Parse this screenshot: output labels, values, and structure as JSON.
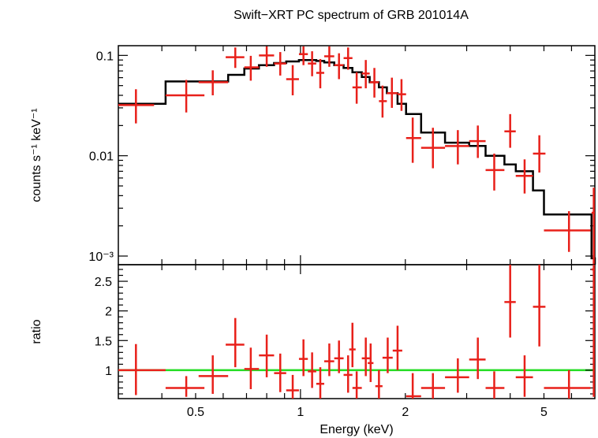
{
  "chart_data": [
    {
      "type": "step+errorbar",
      "panel": "spectrum",
      "title": "Swift−XRT PC spectrum of GRB 201014A",
      "xlabel": "",
      "ylabel": "counts s⁻¹ keV⁻¹",
      "xscale": "log",
      "yscale": "log",
      "xlim": [
        0.3,
        7.0
      ],
      "ylim": [
        0.00082,
        0.125
      ],
      "y_ticks": [
        {
          "value": 0.1,
          "label": "0.1"
        },
        {
          "value": 0.01,
          "label": "0.01"
        },
        {
          "value": 0.001,
          "label": "10⁻³"
        }
      ],
      "series": [
        {
          "kind": "data",
          "color": "#e8201a",
          "points": [
            {
              "x": 0.337,
              "xlo": 0.3,
              "xhi": 0.38,
              "y": 0.032,
              "ylo": 0.021,
              "yhi": 0.046
            },
            {
              "x": 0.47,
              "xlo": 0.41,
              "xhi": 0.53,
              "y": 0.04,
              "ylo": 0.027,
              "yhi": 0.057
            },
            {
              "x": 0.56,
              "xlo": 0.51,
              "xhi": 0.62,
              "y": 0.054,
              "ylo": 0.04,
              "yhi": 0.071
            },
            {
              "x": 0.65,
              "xlo": 0.61,
              "xhi": 0.69,
              "y": 0.096,
              "ylo": 0.075,
              "yhi": 0.12
            },
            {
              "x": 0.72,
              "xlo": 0.69,
              "xhi": 0.76,
              "y": 0.076,
              "ylo": 0.056,
              "yhi": 0.099
            },
            {
              "x": 0.8,
              "xlo": 0.76,
              "xhi": 0.84,
              "y": 0.1,
              "ylo": 0.077,
              "yhi": 0.123
            },
            {
              "x": 0.875,
              "xlo": 0.84,
              "xhi": 0.91,
              "y": 0.083,
              "ylo": 0.063,
              "yhi": 0.108
            },
            {
              "x": 0.95,
              "xlo": 0.91,
              "xhi": 0.99,
              "y": 0.058,
              "ylo": 0.04,
              "yhi": 0.08
            },
            {
              "x": 1.02,
              "xlo": 0.99,
              "xhi": 1.05,
              "y": 0.103,
              "ylo": 0.08,
              "yhi": 0.123
            },
            {
              "x": 1.08,
              "xlo": 1.05,
              "xhi": 1.11,
              "y": 0.083,
              "ylo": 0.062,
              "yhi": 0.11
            },
            {
              "x": 1.14,
              "xlo": 1.11,
              "xhi": 1.17,
              "y": 0.067,
              "ylo": 0.047,
              "yhi": 0.092
            },
            {
              "x": 1.21,
              "xlo": 1.17,
              "xhi": 1.25,
              "y": 0.098,
              "ylo": 0.077,
              "yhi": 0.123
            },
            {
              "x": 1.29,
              "xlo": 1.25,
              "xhi": 1.33,
              "y": 0.08,
              "ylo": 0.058,
              "yhi": 0.105
            },
            {
              "x": 1.37,
              "xlo": 1.33,
              "xhi": 1.41,
              "y": 0.094,
              "ylo": 0.072,
              "yhi": 0.12
            },
            {
              "x": 1.45,
              "xlo": 1.41,
              "xhi": 1.5,
              "y": 0.048,
              "ylo": 0.033,
              "yhi": 0.068
            },
            {
              "x": 1.54,
              "xlo": 1.5,
              "xhi": 1.58,
              "y": 0.066,
              "ylo": 0.047,
              "yhi": 0.09
            },
            {
              "x": 1.63,
              "xlo": 1.58,
              "xhi": 1.68,
              "y": 0.054,
              "ylo": 0.038,
              "yhi": 0.075
            },
            {
              "x": 1.72,
              "xlo": 1.68,
              "xhi": 1.77,
              "y": 0.035,
              "ylo": 0.024,
              "yhi": 0.05
            },
            {
              "x": 1.83,
              "xlo": 1.77,
              "xhi": 1.9,
              "y": 0.042,
              "ylo": 0.03,
              "yhi": 0.06
            },
            {
              "x": 1.95,
              "xlo": 1.9,
              "xhi": 2.01,
              "y": 0.041,
              "ylo": 0.028,
              "yhi": 0.058
            },
            {
              "x": 2.1,
              "xlo": 2.01,
              "xhi": 2.22,
              "y": 0.015,
              "ylo": 0.0085,
              "yhi": 0.024
            },
            {
              "x": 2.4,
              "xlo": 2.22,
              "xhi": 2.6,
              "y": 0.012,
              "ylo": 0.0075,
              "yhi": 0.019
            },
            {
              "x": 2.83,
              "xlo": 2.6,
              "xhi": 3.05,
              "y": 0.0125,
              "ylo": 0.0082,
              "yhi": 0.018
            },
            {
              "x": 3.23,
              "xlo": 3.05,
              "xhi": 3.4,
              "y": 0.014,
              "ylo": 0.0095,
              "yhi": 0.02
            },
            {
              "x": 3.6,
              "xlo": 3.4,
              "xhi": 3.85,
              "y": 0.0072,
              "ylo": 0.0045,
              "yhi": 0.0105
            },
            {
              "x": 4.0,
              "xlo": 3.85,
              "xhi": 4.15,
              "y": 0.0175,
              "ylo": 0.012,
              "yhi": 0.026
            },
            {
              "x": 4.4,
              "xlo": 4.15,
              "xhi": 4.65,
              "y": 0.0063,
              "ylo": 0.0042,
              "yhi": 0.0092
            },
            {
              "x": 4.85,
              "xlo": 4.65,
              "xhi": 5.05,
              "y": 0.0105,
              "ylo": 0.0068,
              "yhi": 0.016
            },
            {
              "x": 5.9,
              "xlo": 5.0,
              "xhi": 6.8,
              "y": 0.0018,
              "ylo": 0.0011,
              "yhi": 0.0028
            },
            {
              "x": 6.95,
              "xlo": 6.85,
              "xhi": 7.0,
              "y": 0.0027,
              "ylo": 0.0008,
              "yhi": 0.0048
            }
          ]
        },
        {
          "kind": "model",
          "color": "#000000",
          "steps": [
            {
              "x0": 0.3,
              "x1": 0.41,
              "y": 0.033
            },
            {
              "x0": 0.41,
              "x1": 0.62,
              "y": 0.055
            },
            {
              "x0": 0.62,
              "x1": 0.69,
              "y": 0.064
            },
            {
              "x0": 0.69,
              "x1": 0.76,
              "y": 0.074
            },
            {
              "x0": 0.76,
              "x1": 0.84,
              "y": 0.08
            },
            {
              "x0": 0.84,
              "x1": 0.91,
              "y": 0.084
            },
            {
              "x0": 0.91,
              "x1": 0.99,
              "y": 0.087
            },
            {
              "x0": 0.99,
              "x1": 1.11,
              "y": 0.09
            },
            {
              "x0": 1.11,
              "x1": 1.17,
              "y": 0.088
            },
            {
              "x0": 1.17,
              "x1": 1.25,
              "y": 0.085
            },
            {
              "x0": 1.25,
              "x1": 1.33,
              "y": 0.08
            },
            {
              "x0": 1.33,
              "x1": 1.41,
              "y": 0.075
            },
            {
              "x0": 1.41,
              "x1": 1.5,
              "y": 0.068
            },
            {
              "x0": 1.5,
              "x1": 1.58,
              "y": 0.061
            },
            {
              "x0": 1.58,
              "x1": 1.68,
              "y": 0.054
            },
            {
              "x0": 1.68,
              "x1": 1.77,
              "y": 0.048
            },
            {
              "x0": 1.77,
              "x1": 1.9,
              "y": 0.042
            },
            {
              "x0": 1.9,
              "x1": 2.01,
              "y": 0.033
            },
            {
              "x0": 2.01,
              "x1": 2.22,
              "y": 0.026
            },
            {
              "x0": 2.22,
              "x1": 2.6,
              "y": 0.017
            },
            {
              "x0": 2.6,
              "x1": 3.05,
              "y": 0.0135
            },
            {
              "x0": 3.05,
              "x1": 3.4,
              "y": 0.0125
            },
            {
              "x0": 3.4,
              "x1": 3.85,
              "y": 0.01
            },
            {
              "x0": 3.85,
              "x1": 4.15,
              "y": 0.0082
            },
            {
              "x0": 4.15,
              "x1": 4.65,
              "y": 0.007
            },
            {
              "x0": 4.65,
              "x1": 5.0,
              "y": 0.0045
            },
            {
              "x0": 5.0,
              "x1": 6.85,
              "y": 0.0026
            },
            {
              "x0": 6.85,
              "x1": 7.0,
              "y": 0.00095
            }
          ]
        }
      ]
    },
    {
      "type": "errorbar",
      "panel": "ratio",
      "xlabel": "Energy (keV)",
      "ylabel": "ratio",
      "xscale": "log",
      "yscale": "linear",
      "xlim": [
        0.3,
        7.0
      ],
      "ylim": [
        0.52,
        2.78
      ],
      "x_ticks": [
        {
          "value": 0.5,
          "label": "0.5"
        },
        {
          "value": 1,
          "label": "1"
        },
        {
          "value": 2,
          "label": "2"
        },
        {
          "value": 5,
          "label": "5"
        }
      ],
      "y_ticks": [
        {
          "value": 1,
          "label": "1"
        },
        {
          "value": 1.5,
          "label": "1.5"
        },
        {
          "value": 2,
          "label": "2"
        },
        {
          "value": 2.5,
          "label": "2.5"
        }
      ],
      "reference_line": {
        "y": 1,
        "color": "#22dd22"
      },
      "series": [
        {
          "kind": "data",
          "color": "#e8201a",
          "points": [
            {
              "x": 0.337,
              "xlo": 0.3,
              "xhi": 0.41,
              "y": 1.0,
              "ylo": 0.58,
              "yhi": 1.44
            },
            {
              "x": 0.47,
              "xlo": 0.41,
              "xhi": 0.53,
              "y": 0.7,
              "ylo": 0.55,
              "yhi": 0.9
            },
            {
              "x": 0.56,
              "xlo": 0.51,
              "xhi": 0.62,
              "y": 0.9,
              "ylo": 0.6,
              "yhi": 1.25
            },
            {
              "x": 0.65,
              "xlo": 0.61,
              "xhi": 0.69,
              "y": 1.43,
              "ylo": 1.05,
              "yhi": 1.88
            },
            {
              "x": 0.72,
              "xlo": 0.69,
              "xhi": 0.76,
              "y": 1.02,
              "ylo": 0.68,
              "yhi": 1.38
            },
            {
              "x": 0.8,
              "xlo": 0.76,
              "xhi": 0.84,
              "y": 1.25,
              "ylo": 0.88,
              "yhi": 1.6
            },
            {
              "x": 0.875,
              "xlo": 0.84,
              "xhi": 0.91,
              "y": 0.95,
              "ylo": 0.63,
              "yhi": 1.28
            },
            {
              "x": 0.95,
              "xlo": 0.91,
              "xhi": 0.99,
              "y": 0.66,
              "ylo": 0.52,
              "yhi": 0.92
            },
            {
              "x": 1.02,
              "xlo": 0.99,
              "xhi": 1.05,
              "y": 1.19,
              "ylo": 0.9,
              "yhi": 1.52
            },
            {
              "x": 1.08,
              "xlo": 1.05,
              "xhi": 1.11,
              "y": 0.98,
              "ylo": 0.7,
              "yhi": 1.3
            },
            {
              "x": 1.14,
              "xlo": 1.11,
              "xhi": 1.17,
              "y": 0.77,
              "ylo": 0.52,
              "yhi": 1.05
            },
            {
              "x": 1.21,
              "xlo": 1.17,
              "xhi": 1.25,
              "y": 1.15,
              "ylo": 0.9,
              "yhi": 1.45
            },
            {
              "x": 1.29,
              "xlo": 1.25,
              "xhi": 1.33,
              "y": 1.2,
              "ylo": 0.95,
              "yhi": 1.5
            },
            {
              "x": 1.37,
              "xlo": 1.33,
              "xhi": 1.41,
              "y": 0.92,
              "ylo": 0.62,
              "yhi": 1.25
            },
            {
              "x": 1.41,
              "xlo": 1.38,
              "xhi": 1.44,
              "y": 1.35,
              "ylo": 1.05,
              "yhi": 1.8
            },
            {
              "x": 1.45,
              "xlo": 1.41,
              "xhi": 1.5,
              "y": 0.7,
              "ylo": 0.52,
              "yhi": 0.98
            },
            {
              "x": 1.54,
              "xlo": 1.5,
              "xhi": 1.58,
              "y": 1.2,
              "ylo": 0.9,
              "yhi": 1.55
            },
            {
              "x": 1.59,
              "xlo": 1.56,
              "xhi": 1.62,
              "y": 1.12,
              "ylo": 0.8,
              "yhi": 1.45
            },
            {
              "x": 1.68,
              "xlo": 1.64,
              "xhi": 1.72,
              "y": 0.73,
              "ylo": 0.52,
              "yhi": 1.0
            },
            {
              "x": 1.78,
              "xlo": 1.72,
              "xhi": 1.84,
              "y": 1.21,
              "ylo": 0.95,
              "yhi": 1.55
            },
            {
              "x": 1.9,
              "xlo": 1.84,
              "xhi": 1.96,
              "y": 1.33,
              "ylo": 1.0,
              "yhi": 1.75
            },
            {
              "x": 2.1,
              "xlo": 2.01,
              "xhi": 2.22,
              "y": 0.56,
              "ylo": 0.52,
              "yhi": 0.95
            },
            {
              "x": 2.4,
              "xlo": 2.22,
              "xhi": 2.6,
              "y": 0.7,
              "ylo": 0.52,
              "yhi": 0.95
            },
            {
              "x": 2.83,
              "xlo": 2.6,
              "xhi": 3.05,
              "y": 0.88,
              "ylo": 0.62,
              "yhi": 1.2
            },
            {
              "x": 3.23,
              "xlo": 3.05,
              "xhi": 3.4,
              "y": 1.18,
              "ylo": 0.85,
              "yhi": 1.55
            },
            {
              "x": 3.6,
              "xlo": 3.4,
              "xhi": 3.85,
              "y": 0.7,
              "ylo": 0.52,
              "yhi": 0.98
            },
            {
              "x": 4.0,
              "xlo": 3.85,
              "xhi": 4.15,
              "y": 2.15,
              "ylo": 1.55,
              "yhi": 2.78
            },
            {
              "x": 4.4,
              "xlo": 4.15,
              "xhi": 4.65,
              "y": 0.88,
              "ylo": 0.55,
              "yhi": 1.25
            },
            {
              "x": 4.85,
              "xlo": 4.65,
              "xhi": 5.05,
              "y": 2.07,
              "ylo": 1.4,
              "yhi": 2.78
            },
            {
              "x": 5.9,
              "xlo": 5.0,
              "xhi": 6.8,
              "y": 0.7,
              "ylo": 0.52,
              "yhi": 1.0
            },
            {
              "x": 6.95,
              "xlo": 6.85,
              "xhi": 7.0,
              "y": 2.7,
              "ylo": 0.55,
              "yhi": 2.78
            }
          ]
        }
      ]
    }
  ]
}
